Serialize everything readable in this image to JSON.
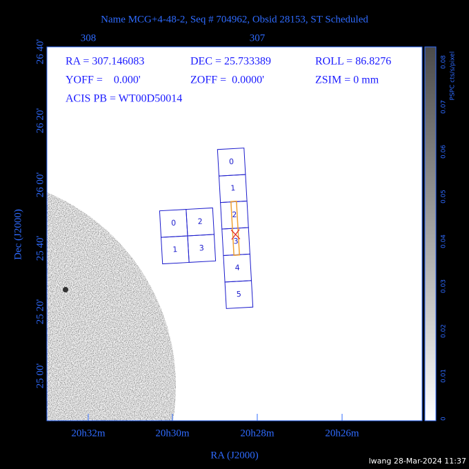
{
  "header": {
    "title": "Name MCG+4-48-2, Seq # 704962, Obsid 28153, ST Scheduled"
  },
  "top_axis": {
    "labels": [
      "308",
      "307"
    ]
  },
  "left_axis": {
    "title": "Dec (J2000)",
    "labels": [
      "26 40'",
      "26 20'",
      "26 00'",
      "25 40'",
      "25 20'",
      "25 00'"
    ]
  },
  "bottom_axis": {
    "title": "RA (J2000)",
    "labels": [
      "20h32m",
      "20h30m",
      "20h28m",
      "20h26m"
    ]
  },
  "info": {
    "ra": "RA = 307.146083",
    "dec": "DEC = 25.733389",
    "roll": "ROLL = 86.8276",
    "yoff": "YOFF =    0.000'",
    "zoff": "ZOFF =  0.0000'",
    "zsim": "ZSIM = 0 mm",
    "acis_pb": "ACIS PB = WT00D50014"
  },
  "acis_s": {
    "chips": [
      "0",
      "1",
      "2",
      "3",
      "4",
      "5"
    ]
  },
  "acis_i": {
    "chips": [
      "0",
      "2",
      "1",
      "3"
    ]
  },
  "colorbar": {
    "title": "PSPC cts/s/pixel",
    "labels": [
      "0",
      "0.01",
      "0.02",
      "0.03",
      "0.04",
      "0.05",
      "0.06",
      "0.07",
      "0.08"
    ]
  },
  "footer": {
    "text": "lwang 28-Mar-2024 11:37"
  }
}
